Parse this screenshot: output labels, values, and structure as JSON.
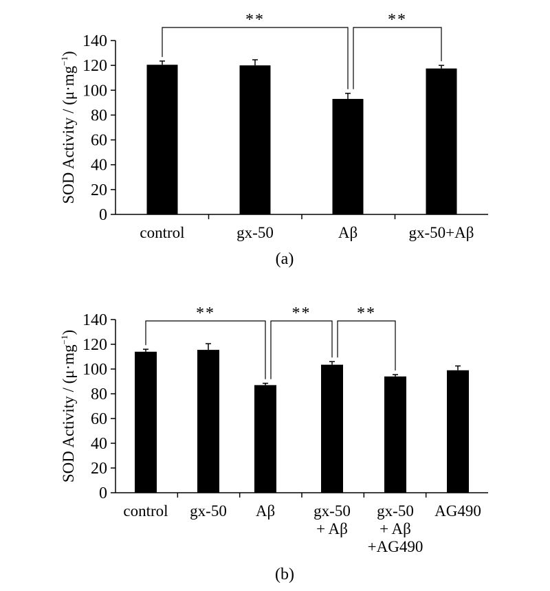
{
  "chart_data": [
    {
      "type": "bar",
      "panel_label": "(a)",
      "ylabel": "SOD Activity / (μ·mg",
      "ylabel_sup": "−1",
      "ylabel_close": ")",
      "ylim": [
        0,
        140
      ],
      "yticks": [
        "0",
        "20",
        "40",
        "60",
        "80",
        "100",
        "120",
        "140"
      ],
      "categories": [
        [
          "control"
        ],
        [
          "gx-50"
        ],
        [
          "Aβ"
        ],
        [
          "gx-50+Aβ"
        ]
      ],
      "values": [
        120.5,
        120,
        93,
        117.5
      ],
      "errors": [
        3,
        4.5,
        4.5,
        2.5
      ],
      "bar_color": "#000000",
      "significance": [
        {
          "from": 0,
          "to": 2,
          "label": "**"
        },
        {
          "from": 2,
          "to": 3,
          "label": "**"
        }
      ]
    },
    {
      "type": "bar",
      "panel_label": "(b)",
      "ylabel": "SOD Activity / (μ·mg",
      "ylabel_sup": "−1",
      "ylabel_close": ")",
      "ylim": [
        0,
        140
      ],
      "yticks": [
        "0",
        "20",
        "40",
        "60",
        "80",
        "100",
        "120",
        "140"
      ],
      "categories": [
        [
          "control"
        ],
        [
          "gx-50"
        ],
        [
          "Aβ"
        ],
        [
          "gx-50",
          "+ Aβ"
        ],
        [
          "gx-50",
          "+ Aβ",
          "+AG490"
        ],
        [
          "AG490"
        ]
      ],
      "values": [
        114,
        115.5,
        87,
        103.5,
        94,
        99
      ],
      "errors": [
        2,
        5,
        1.5,
        2.5,
        1.5,
        3.5
      ],
      "bar_color": "#000000",
      "significance": [
        {
          "from": 0,
          "to": 2,
          "label": "**"
        },
        {
          "from": 2,
          "to": 3,
          "label": "**"
        },
        {
          "from": 3,
          "to": 4,
          "label": "**"
        }
      ]
    }
  ]
}
